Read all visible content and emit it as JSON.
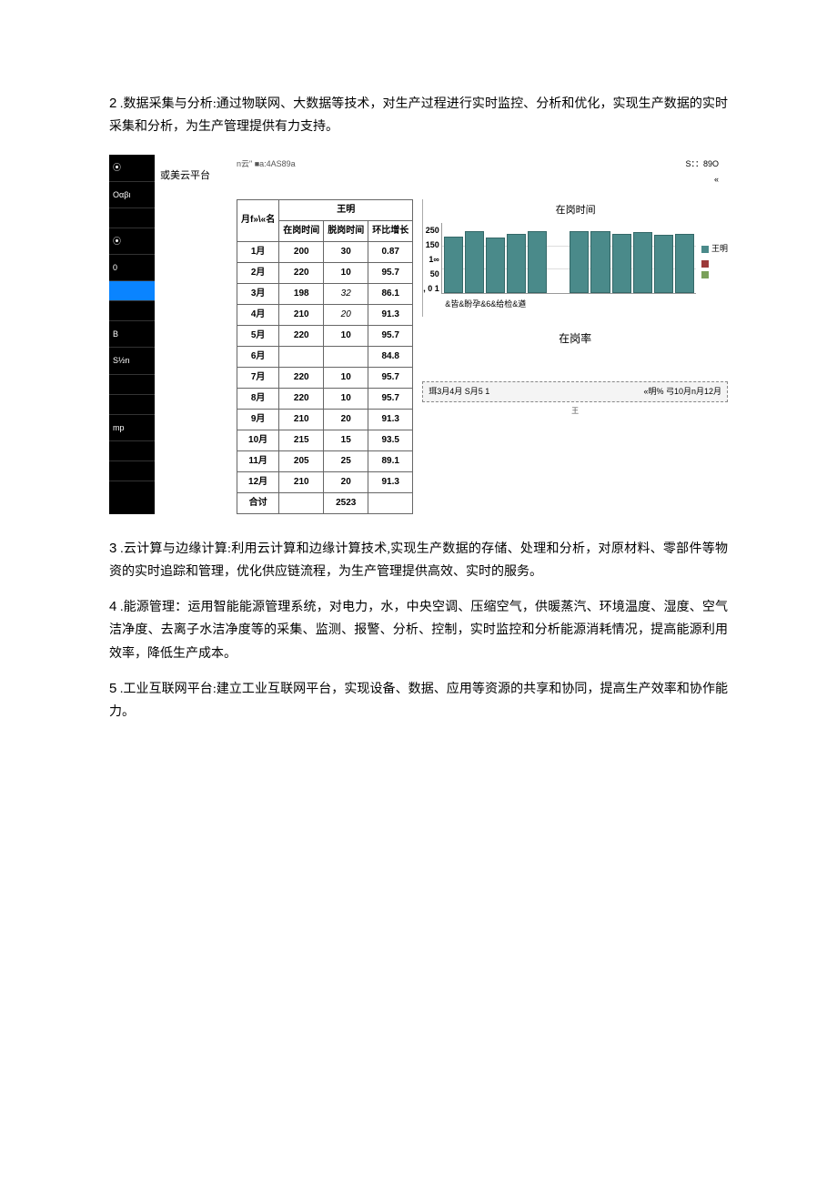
{
  "paragraphs": {
    "p2_num": "2",
    "p2": " .数据采集与分析:通过物联网、大数据等技术，对生产过程进行实时监控、分析和优化，实现生产数据的实时采集和分析，为生产管理提供有力支持。",
    "p3_num": "3",
    "p3": " .云计算与边缘计算:利用云计算和边缘计算技术,实现生产数据的存储、处理和分析，对原材料、零部件等物资的实时追踪和管理，优化供应链流程，为生产管理提供高效、实时的服务。",
    "p4_num": "4",
    "p4": " .能源管理：运用智能能源管理系统，对电力，水，中央空调、压缩空气，供暖蒸汽、环境温度、湿度、空气洁净度、去离子水洁净度等的采集、监测、报警、分析、控制，实时监控和分析能源消耗情况，提高能源利用效率，降低生产成本。",
    "p5_num": "5",
    "p5": " .工业互联网平台:建立工业互联网平台，实现设备、数据、应用等资源的共享和协同，提高生产效率和协作能力。"
  },
  "platform_label": "或美云平台",
  "sidebar": {
    "items": [
      "⦿",
      "Oαβι",
      "",
      "⦿",
      "0",
      "",
      "",
      "B",
      "S½n",
      "",
      "",
      "mp",
      "",
      ""
    ]
  },
  "topline": {
    "left": "n云\" ■a:4AS89a",
    "right_top": "S：：89O",
    "right_sub": "«"
  },
  "table": {
    "person_header": "王明",
    "cols": [
      "月f»\\«名",
      "在岗时间",
      "脱岗时间",
      "环比增长"
    ],
    "rows": [
      {
        "m": "1月",
        "a": "200",
        "b": "30",
        "c": "0.87",
        "ai": false,
        "bi": false
      },
      {
        "m": "2月",
        "a": "220",
        "b": "10",
        "c": "95.7",
        "ai": false,
        "bi": false
      },
      {
        "m": "3月",
        "a": "198",
        "b": "32",
        "c": "86.1",
        "ai": false,
        "bi": true
      },
      {
        "m": "4月",
        "a": "210",
        "b": "20",
        "c": "91.3",
        "ai": false,
        "bi": true
      },
      {
        "m": "5月",
        "a": "220",
        "b": "10",
        "c": "95.7",
        "ai": false,
        "bi": false
      },
      {
        "m": "6月",
        "a": "",
        "b": "",
        "c": "84.8",
        "ai": false,
        "bi": false
      },
      {
        "m": "7月",
        "a": "220",
        "b": "10",
        "c": "95.7",
        "ai": false,
        "bi": false
      },
      {
        "m": "8月",
        "a": "220",
        "b": "10",
        "c": "95.7",
        "ai": false,
        "bi": false
      },
      {
        "m": "9月",
        "a": "210",
        "b": "20",
        "c": "91.3",
        "ai": false,
        "bi": false
      },
      {
        "m": "10月",
        "a": "215",
        "b": "15",
        "c": "93.5",
        "ai": false,
        "bi": false
      },
      {
        "m": "11月",
        "a": "205",
        "b": "25",
        "c": "89.1",
        "ai": false,
        "bi": false
      },
      {
        "m": "12月",
        "a": "210",
        "b": "20",
        "c": "91.3",
        "ai": false,
        "bi": false
      }
    ],
    "total_label": "合讨",
    "total_b": "2523"
  },
  "chart": {
    "title": "在岗时间",
    "y_ticks": [
      "250",
      "150",
      "1∞",
      "50",
      ", 0"
    ],
    "y_extra": "1",
    "x_caption": "&皆&盼孕&6&给检&遒",
    "legend": [
      {
        "color": "#4a8a8a",
        "label": "王明"
      },
      {
        "color": "#9c3a3a",
        "label": ""
      },
      {
        "color": "#7aa05a",
        "label": ""
      }
    ],
    "bar_color": "#4a8a8a",
    "bar_border": "#346868",
    "bar_heights_pct": [
      80,
      88,
      79,
      84,
      88,
      0,
      88,
      88,
      84,
      86,
      82,
      84
    ],
    "max_y": 250
  },
  "rate": {
    "title": "在岗率",
    "dashed_left": "珥3月4月 S月5   1",
    "dashed_right": "«明% 弓10月n月12月",
    "foot": "王"
  }
}
